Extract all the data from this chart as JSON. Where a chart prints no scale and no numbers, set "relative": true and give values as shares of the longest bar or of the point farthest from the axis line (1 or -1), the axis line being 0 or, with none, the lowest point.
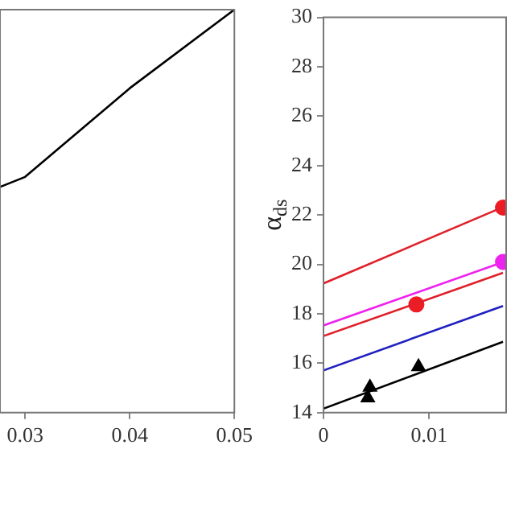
{
  "chart_data": [
    {
      "type": "line",
      "relative": true,
      "x": [
        0.0276,
        0.03,
        0.04,
        0.05
      ],
      "xlim": [
        0.0276,
        0.05
      ],
      "xticks": [
        0.03,
        0.04,
        0.05
      ],
      "grid": false,
      "legend": false,
      "marker": "none",
      "series": [
        {
          "color": "#000000",
          "values": [
            0.56,
            0.585,
            0.805,
            1
          ]
        }
      ]
    },
    {
      "type": "line",
      "ylabel": "α$_{ds}$",
      "x": [
        0,
        0.017
      ],
      "xlim": [
        0,
        0.0173
      ],
      "xticks": [
        0,
        0.01
      ],
      "ylim": [
        14,
        30
      ],
      "yticks": [
        14,
        16,
        18,
        20,
        22,
        24,
        26,
        28,
        30
      ],
      "grid": false,
      "legend": false,
      "marker": "none",
      "series": [
        {
          "color": "#e0202a",
          "values": [
            19.23,
            22.32
          ]
        },
        {
          "color": "#ee22ee",
          "values": [
            17.53,
            20.09
          ]
        },
        {
          "color": "#e0202a",
          "values": [
            17.1,
            19.66
          ]
        },
        {
          "color": "#2020c0",
          "values": [
            15.71,
            18.32
          ]
        },
        {
          "color": "#000000",
          "values": [
            14.16,
            16.87
          ]
        },
        {
          "type": "scatter",
          "marker": "circle",
          "color": "#ee1c24",
          "x": [
            0.0088,
            0.017
          ],
          "values": [
            18.38,
            22.3
          ]
        },
        {
          "type": "scatter",
          "marker": "circle",
          "color": "#ee22ee",
          "x": [
            0.017
          ],
          "values": [
            20.1
          ]
        },
        {
          "type": "scatter",
          "marker": "triangle",
          "color": "#000000",
          "x": [
            0.0042,
            0.0044,
            0.009
          ],
          "values": [
            14.6,
            15.03,
            15.86
          ]
        }
      ]
    }
  ]
}
